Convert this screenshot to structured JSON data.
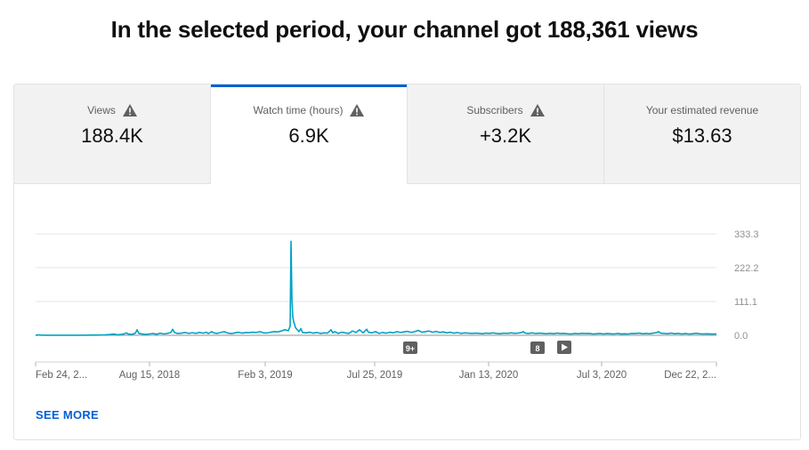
{
  "headline": "In the selected period, your channel got 188,361 views",
  "tabs": [
    {
      "label": "Views",
      "value": "188.4K",
      "warning": true,
      "active": false
    },
    {
      "label": "Watch time (hours)",
      "value": "6.9K",
      "warning": true,
      "active": true
    },
    {
      "label": "Subscribers",
      "value": "+3.2K",
      "warning": true,
      "active": false
    },
    {
      "label": "Your estimated revenue",
      "value": "$13.63",
      "warning": false,
      "active": false
    }
  ],
  "icons": {
    "warning": "warning-triangle-icon",
    "play": "play-icon"
  },
  "colors": {
    "accent": "#065fd4",
    "line": "#00a3c4",
    "tab_bg": "#f2f2f2"
  },
  "chart_data": {
    "type": "line",
    "series": [
      {
        "values": [
          [
            0,
            0.4
          ],
          [
            3,
            0.8
          ],
          [
            5,
            1.2
          ],
          [
            6,
            0.6
          ],
          [
            8,
            0.3
          ],
          [
            20,
            0.2
          ],
          [
            32,
            0.3
          ],
          [
            48,
            0.3
          ],
          [
            55,
            0.4
          ],
          [
            62,
            0.5
          ],
          [
            66,
            0.8
          ],
          [
            68,
            0.5
          ],
          [
            72,
            1.0
          ],
          [
            78,
            1.5
          ],
          [
            84,
            2.5
          ],
          [
            88,
            4.0
          ],
          [
            92,
            1.8
          ],
          [
            96,
            2.8
          ],
          [
            100,
            5.0
          ],
          [
            102,
            8.0
          ],
          [
            104,
            4.0
          ],
          [
            108,
            3.0
          ],
          [
            112,
            6.5
          ],
          [
            114,
            18.0
          ],
          [
            116,
            6.0
          ],
          [
            120,
            4.0
          ],
          [
            124,
            3.0
          ],
          [
            128,
            4.5
          ],
          [
            132,
            5.5
          ],
          [
            136,
            3.5
          ],
          [
            140,
            7.0
          ],
          [
            144,
            4.5
          ],
          [
            148,
            6.0
          ],
          [
            152,
            9.0
          ],
          [
            154,
            20.0
          ],
          [
            156,
            9.0
          ],
          [
            160,
            5.5
          ],
          [
            164,
            7.0
          ],
          [
            168,
            9.0
          ],
          [
            172,
            6.0
          ],
          [
            176,
            8.5
          ],
          [
            180,
            6.0
          ],
          [
            184,
            9.5
          ],
          [
            188,
            7.0
          ],
          [
            192,
            10.0
          ],
          [
            194,
            5.5
          ],
          [
            198,
            12.0
          ],
          [
            200,
            8.0
          ],
          [
            204,
            6.0
          ],
          [
            208,
            9.0
          ],
          [
            212,
            12.0
          ],
          [
            216,
            7.0
          ],
          [
            220,
            5.5
          ],
          [
            224,
            8.0
          ],
          [
            228,
            10.0
          ],
          [
            232,
            7.0
          ],
          [
            236,
            9.0
          ],
          [
            240,
            8.5
          ],
          [
            244,
            10.0
          ],
          [
            248,
            9.0
          ],
          [
            252,
            12.0
          ],
          [
            256,
            8.0
          ],
          [
            260,
            7.5
          ],
          [
            264,
            10.0
          ],
          [
            268,
            12.0
          ],
          [
            272,
            11.0
          ],
          [
            276,
            14.0
          ],
          [
            280,
            18.0
          ],
          [
            284,
            15.0
          ],
          [
            286,
            30.0
          ],
          [
            287,
            309.0
          ],
          [
            288,
            120.0
          ],
          [
            289,
            60.0
          ],
          [
            290,
            45.0
          ],
          [
            292,
            25.0
          ],
          [
            294,
            18.0
          ],
          [
            296,
            12.0
          ],
          [
            298,
            22.0
          ],
          [
            300,
            9.0
          ],
          [
            304,
            8.0
          ],
          [
            308,
            10.0
          ],
          [
            312,
            7.0
          ],
          [
            316,
            9.0
          ],
          [
            320,
            6.0
          ],
          [
            324,
            8.0
          ],
          [
            328,
            7.0
          ],
          [
            332,
            18.0
          ],
          [
            334,
            8.0
          ],
          [
            336,
            12.0
          ],
          [
            340,
            6.0
          ],
          [
            344,
            10.0
          ],
          [
            348,
            8.0
          ],
          [
            352,
            6.0
          ],
          [
            356,
            14.0
          ],
          [
            360,
            9.0
          ],
          [
            364,
            18.0
          ],
          [
            368,
            8.0
          ],
          [
            372,
            20.0
          ],
          [
            374,
            10.0
          ],
          [
            378,
            8.0
          ],
          [
            382,
            12.0
          ],
          [
            386,
            6.0
          ],
          [
            390,
            9.0
          ],
          [
            394,
            7.0
          ],
          [
            398,
            10.0
          ],
          [
            402,
            8.0
          ],
          [
            406,
            12.0
          ],
          [
            410,
            9.0
          ],
          [
            414,
            11.0
          ],
          [
            418,
            13.0
          ],
          [
            422,
            9.0
          ],
          [
            426,
            12.0
          ],
          [
            430,
            16.0
          ],
          [
            434,
            10.0
          ],
          [
            438,
            12.0
          ],
          [
            442,
            14.0
          ],
          [
            446,
            10.0
          ],
          [
            450,
            13.0
          ],
          [
            454,
            9.0
          ],
          [
            458,
            11.0
          ],
          [
            462,
            8.0
          ],
          [
            466,
            10.0
          ],
          [
            470,
            7.0
          ],
          [
            474,
            9.0
          ],
          [
            478,
            6.0
          ],
          [
            482,
            8.0
          ],
          [
            486,
            7.0
          ],
          [
            490,
            6.0
          ],
          [
            494,
            7.0
          ],
          [
            498,
            6.5
          ],
          [
            502,
            5.0
          ],
          [
            506,
            7.0
          ],
          [
            510,
            6.0
          ],
          [
            514,
            8.0
          ],
          [
            518,
            6.0
          ],
          [
            522,
            5.0
          ],
          [
            526,
            7.0
          ],
          [
            530,
            6.0
          ],
          [
            534,
            8.0
          ],
          [
            538,
            6.5
          ],
          [
            542,
            7.0
          ],
          [
            546,
            9.0
          ],
          [
            548,
            12.0
          ],
          [
            550,
            7.0
          ],
          [
            554,
            6.0
          ],
          [
            558,
            8.0
          ],
          [
            562,
            5.5
          ],
          [
            566,
            7.0
          ],
          [
            570,
            6.0
          ],
          [
            574,
            5.0
          ],
          [
            578,
            6.5
          ],
          [
            582,
            5.0
          ],
          [
            586,
            7.0
          ],
          [
            590,
            5.5
          ],
          [
            594,
            6.0
          ],
          [
            598,
            5.0
          ],
          [
            602,
            4.5
          ],
          [
            606,
            6.0
          ],
          [
            610,
            5.0
          ],
          [
            614,
            6.5
          ],
          [
            618,
            5.5
          ],
          [
            622,
            6.0
          ],
          [
            626,
            4.5
          ],
          [
            630,
            5.0
          ],
          [
            634,
            6.0
          ],
          [
            638,
            4.5
          ],
          [
            642,
            5.5
          ],
          [
            646,
            5.0
          ],
          [
            650,
            4.5
          ],
          [
            654,
            6.0
          ],
          [
            658,
            4.0
          ],
          [
            662,
            5.0
          ],
          [
            666,
            4.5
          ],
          [
            670,
            6.0
          ],
          [
            674,
            5.5
          ],
          [
            678,
            7.0
          ],
          [
            682,
            5.0
          ],
          [
            686,
            6.0
          ],
          [
            690,
            5.0
          ],
          [
            694,
            7.0
          ],
          [
            698,
            9.0
          ],
          [
            700,
            12.0
          ],
          [
            702,
            7.0
          ],
          [
            706,
            6.0
          ],
          [
            710,
            5.0
          ],
          [
            714,
            7.0
          ],
          [
            718,
            5.0
          ],
          [
            722,
            6.0
          ],
          [
            726,
            4.5
          ],
          [
            730,
            5.5
          ],
          [
            734,
            4.5
          ],
          [
            738,
            5.0
          ],
          [
            742,
            6.5
          ],
          [
            746,
            5.0
          ],
          [
            750,
            4.5
          ],
          [
            754,
            5.0
          ],
          [
            758,
            4.0
          ],
          [
            762,
            4.5
          ],
          [
            765,
            4.0
          ]
        ]
      }
    ],
    "yticks": [
      "333.3",
      "222.2",
      "111.1",
      "0.0"
    ],
    "ylim": [
      0,
      333.3
    ],
    "xticks": [
      "Feb 24, 2...",
      "Aug 15, 2018",
      "Feb 3, 2019",
      "Jul 25, 2019",
      "Jan 13, 2020",
      "Jul 3, 2020",
      "Dec 22, 2..."
    ],
    "grid": true,
    "annotations": [
      {
        "label": "9+",
        "type": "badge"
      },
      {
        "label": "8",
        "type": "badge"
      },
      {
        "label": "",
        "type": "play-icon"
      }
    ]
  },
  "see_more": "SEE MORE"
}
